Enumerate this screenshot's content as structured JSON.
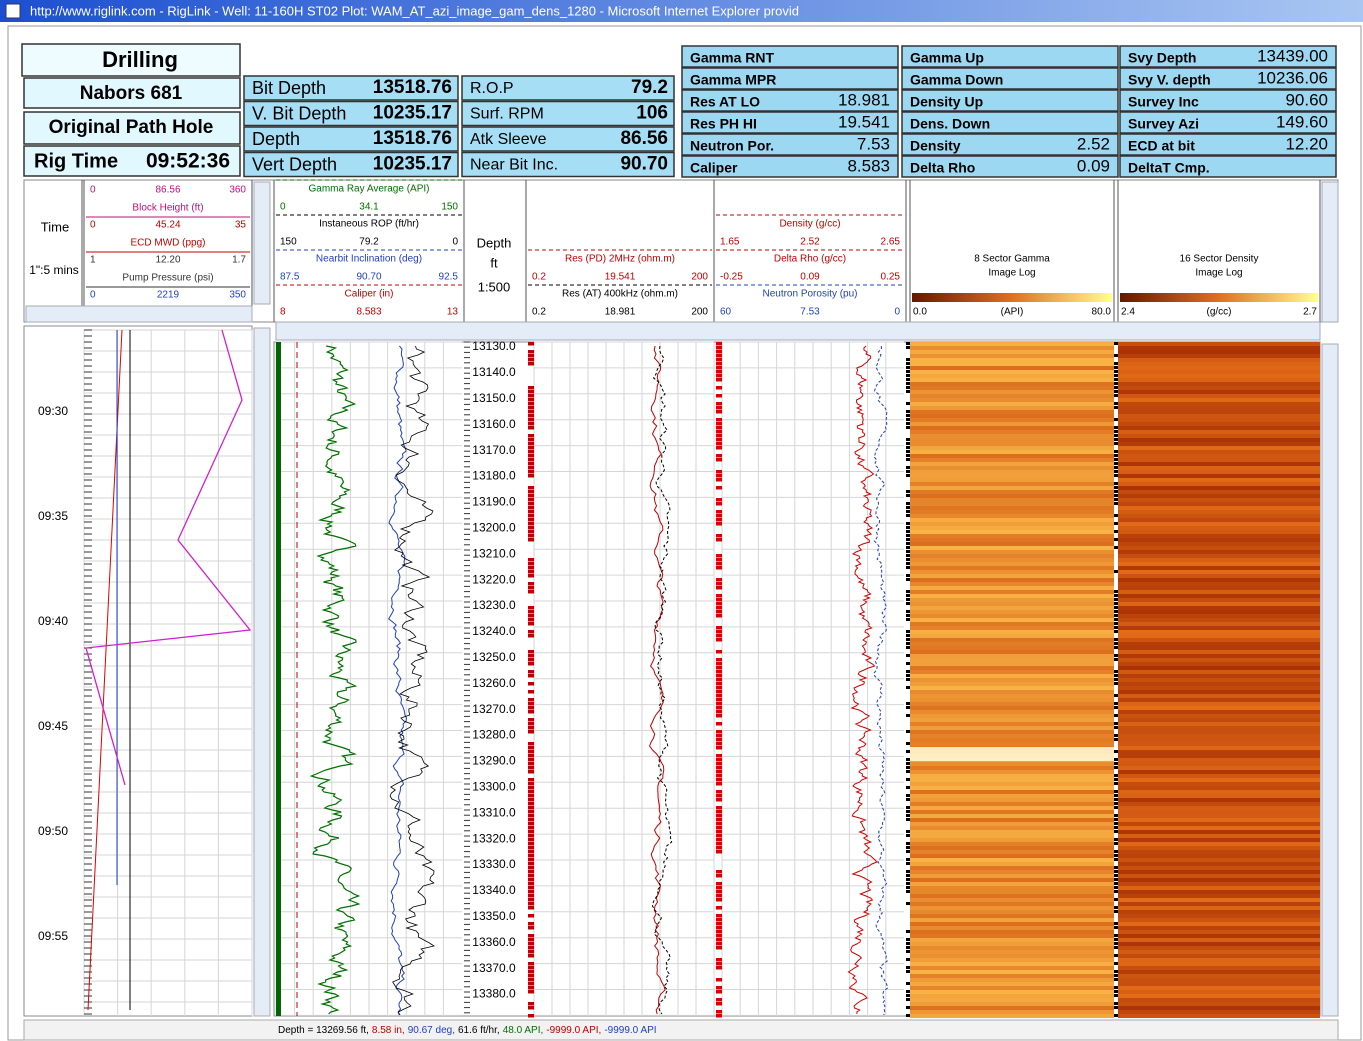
{
  "window": {
    "title": "http://www.riglink.com - RigLink - Well: 11-160H ST02 Plot: WAM_AT_azi_image_gam_dens_1280 - Microsoft Internet Explorer provid"
  },
  "header": {
    "section": "Drilling",
    "rig": "Nabors 681",
    "hole": "Original Path Hole",
    "rig_time_label": "Rig Time",
    "rig_time": "09:52:36"
  },
  "drilling_params": [
    [
      {
        "label": "Bit Depth",
        "value": "13518.76"
      },
      {
        "label": "V. Bit Depth",
        "value": "10235.17"
      },
      {
        "label": "Depth",
        "value": "13518.76"
      },
      {
        "label": "Vert Depth",
        "value": "10235.17"
      }
    ],
    [
      {
        "label": "R.O.P",
        "value": "79.2"
      },
      {
        "label": "Surf. RPM",
        "value": "106"
      },
      {
        "label": "Atk Sleeve",
        "value": "86.56"
      },
      {
        "label": "Near Bit Inc.",
        "value": "90.70"
      }
    ]
  ],
  "sensors": [
    [
      {
        "label": "Gamma RNT"
      },
      {
        "label": "Gamma MPR"
      },
      {
        "label": "Res AT LO",
        "value": "18.981"
      },
      {
        "label": "Res PH HI",
        "value": "19.541"
      },
      {
        "label": "Neutron Por.",
        "value": "7.53"
      },
      {
        "label": "Caliper",
        "value": "8.583"
      }
    ],
    [
      {
        "label": "Gamma Up"
      },
      {
        "label": "Gamma Down"
      },
      {
        "label": "Density Up"
      },
      {
        "label": "Dens. Down"
      },
      {
        "label": "Density",
        "value": "2.52"
      },
      {
        "label": "Delta Rho",
        "value": "0.09"
      }
    ],
    [
      {
        "label": "Svy Depth",
        "value": "13439.00"
      },
      {
        "label": "Svy V. depth",
        "value": "10236.06"
      },
      {
        "label": "Survey Inc",
        "value": "90.60"
      },
      {
        "label": "Survey Azi",
        "value": "149.60"
      },
      {
        "label": "ECD at bit",
        "value": "12.20"
      },
      {
        "label": "DeltaT Cmp."
      }
    ]
  ],
  "tracks": {
    "time": {
      "label": "Time",
      "scale": "1\":5 mins"
    },
    "scales": [
      {
        "name": "Block Height (ft)",
        "min": "0",
        "value": "86.56",
        "max": "360",
        "color": "#c0107a"
      },
      {
        "name": "ECD MWD (ppg)",
        "min": "0",
        "value": "45.24",
        "max": "35",
        "color": "#c00000"
      },
      {
        "name": "Pump Pressure (psi)",
        "min": "1",
        "value": "12.20",
        "max": "1.7",
        "color": "#333333"
      },
      {
        "name": "",
        "min": "0",
        "value": "2219",
        "max": "350",
        "color": "#1f3fbf"
      }
    ],
    "gamma": [
      {
        "name": "Gamma Ray Average (API)",
        "min": "0",
        "value": "34.1",
        "max": "150",
        "color": "#007000"
      },
      {
        "name": "Instaneous ROP (ft/hr)",
        "min": "150",
        "value": "79.2",
        "max": "0",
        "color": "#000000"
      },
      {
        "name": "Nearbit Inclination (deg)",
        "min": "87.5",
        "value": "90.70",
        "max": "92.5",
        "color": "#1f3fbf"
      },
      {
        "name": "Caliper (in)",
        "min": "8",
        "value": "8.583",
        "max": "13",
        "color": "#c00000"
      }
    ],
    "depth": {
      "label": "Depth",
      "unit": "ft",
      "scale": "1:500"
    },
    "resistivity": [
      {
        "name": "Res (PD) 2MHz (ohm.m)",
        "min": "0.2",
        "value": "19.541",
        "max": "200",
        "color": "#c00000"
      },
      {
        "name": "Res (AT) 400kHz (ohm.m)",
        "min": "0.2",
        "value": "18.981",
        "max": "200",
        "color": "#000000"
      }
    ],
    "density": [
      {
        "name": "Density (g/cc)",
        "min": "1.65",
        "value": "2.52",
        "max": "2.65",
        "color": "#c00000"
      },
      {
        "name": "Delta Rho (g/cc)",
        "min": "-0.25",
        "value": "0.09",
        "max": "0.25",
        "color": "#c00000"
      },
      {
        "name": "Neutron Porosity (pu)",
        "min": "60",
        "value": "7.53",
        "max": "0",
        "color": "#1f3fbf"
      }
    ],
    "image_gamma": {
      "title_lines": [
        "8 Sector Gamma",
        "Image Log"
      ],
      "min": "0.0",
      "unit": "(API)",
      "max": "80.0"
    },
    "image_density": {
      "title_lines": [
        "16 Sector Density",
        "Image Log"
      ],
      "min": "2.4",
      "unit": "(g/cc)",
      "max": "2.7"
    }
  },
  "time_labels": [
    "09:30",
    "09:35",
    "09:40",
    "09:45",
    "09:50",
    "09:55"
  ],
  "depth_labels": [
    "13130.0",
    "13140.0",
    "13150.0",
    "13160.0",
    "13170.0",
    "13180.0",
    "13190.0",
    "13200.0",
    "13210.0",
    "13220.0",
    "13230.0",
    "13240.0",
    "13250.0",
    "13260.0",
    "13270.0",
    "13280.0",
    "13290.0",
    "13300.0",
    "13310.0",
    "13320.0",
    "13330.0",
    "13340.0",
    "13350.0",
    "13360.0",
    "13370.0",
    "13380.0"
  ],
  "status": [
    {
      "text": "Depth = 13269.56 ft,",
      "color": "#000000"
    },
    {
      "text": "8.58 in,",
      "color": "#c00000"
    },
    {
      "text": "90.67 deg,",
      "color": "#1f3fbf"
    },
    {
      "text": "61.6 ft/hr,",
      "color": "#000000"
    },
    {
      "text": "48.0 API,",
      "color": "#007000"
    },
    {
      "text": "-9999.0 API,",
      "color": "#c00000"
    },
    {
      "text": "-9999.0 API",
      "color": "#1f3fbf"
    }
  ]
}
